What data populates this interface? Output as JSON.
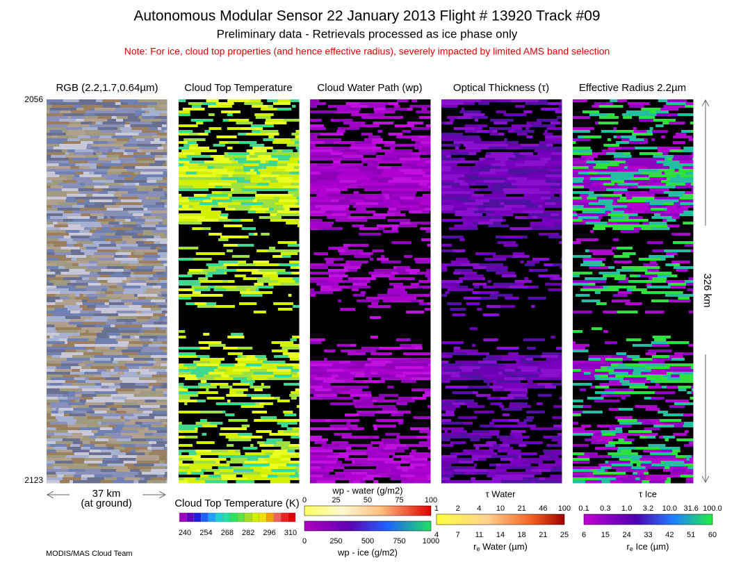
{
  "header": {
    "title": "Autonomous Modular Sensor  22 January 2013  Flight # 13920 Track #09",
    "subtitle": "Preliminary data - Retrievals processed as ice phase only",
    "note": "Note: For ice, cloud top properties (and hence effective radius), severely impacted by limited AMS band selection"
  },
  "panels": [
    {
      "title": "RGB (2.2,1.7,0.64µm)"
    },
    {
      "title": "Cloud Top Temperature"
    },
    {
      "title": "Cloud Water Path (wp)"
    },
    {
      "title": "Optical Thickness (τ)"
    },
    {
      "title": "Effective Radius 2.2µm"
    }
  ],
  "scan": {
    "start": "2056",
    "end": "2123"
  },
  "scale": {
    "width": "37 km",
    "width_note": "(at ground)",
    "length": "326 km"
  },
  "colorbars": {
    "temperature": {
      "title": "Cloud Top Temperature (K)",
      "ticks": [
        "240",
        "254",
        "268",
        "282",
        "296",
        "310"
      ]
    },
    "water_path": {
      "top_title": "wp - water (g/m2)",
      "top_ticks": [
        "0",
        "25",
        "50",
        "75",
        "100"
      ],
      "bottom_ticks": [
        "0",
        "250",
        "500",
        "750",
        "1000"
      ],
      "bottom_title": "wp - ice (g/m2)"
    },
    "tau_water": {
      "top_title": "τ Water",
      "top_ticks": [
        "1",
        "2",
        "4",
        "10",
        "21",
        "46",
        "100"
      ],
      "bottom_ticks": [
        "4",
        "7",
        "11",
        "14",
        "18",
        "21",
        "25"
      ],
      "bottom_title": [
        "r",
        "e",
        " Water (µm)"
      ]
    },
    "tau_ice": {
      "top_title": "τ Ice",
      "top_ticks": [
        "0.1",
        "0.3",
        "1.0",
        "3.2",
        "10.0",
        "31.6",
        "100.0"
      ],
      "bottom_ticks": [
        "6",
        "15",
        "24",
        "33",
        "42",
        "51",
        "60"
      ],
      "bottom_title": [
        "r",
        "e",
        " Ice (µm)"
      ]
    }
  },
  "credit": "MODIS/MAS Cloud Team"
}
